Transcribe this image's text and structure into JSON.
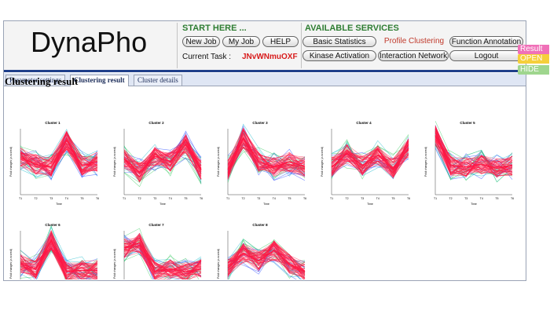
{
  "app": {
    "logo": "DynaPho"
  },
  "start": {
    "title": "START HERE ...",
    "new_job": "New Job",
    "my_job": "My Job",
    "help": "HELP",
    "current_task_label": "Current Task :",
    "current_task_value": "JNvWNmuOXF"
  },
  "services": {
    "title": "AVAILABLE SERVICES",
    "basic_statistics": "Basic Statistics",
    "profile_clustering": "Profile Clustering",
    "function_annotation": "Function Annotation",
    "kinase_activation": "Kinase Activation",
    "interaction_network": "Interaction Network",
    "logout": "Logout"
  },
  "side_tabs": {
    "result": "Result",
    "open": "OPEN",
    "hide": "HIDE"
  },
  "tabs": [
    "Parameter settings",
    "Clustering result",
    "Cluster details"
  ],
  "page": {
    "title": "Clustering result"
  },
  "colors": {
    "nav_border": "#1f3f8a",
    "green_heading": "#2e7d32",
    "task_red": "#d81b1b",
    "profile_main": "#ff1744",
    "profile_secondary": [
      "#1a3dff",
      "#12b7c9",
      "#31c85a"
    ]
  },
  "chart_data": [
    {
      "type": "line",
      "title": "Cluster 1",
      "xlabel": "Time",
      "ylabel": "Fold changes (z-scored)",
      "x": [
        "T1",
        "T2",
        "T3",
        "T4",
        "T5",
        "T6"
      ],
      "series": [
        {
          "values": [
            0.3,
            -0.2,
            -0.4,
            1.6,
            -0.3,
            0.0
          ]
        }
      ]
    },
    {
      "type": "line",
      "title": "Cluster 2",
      "xlabel": "Time",
      "ylabel": "Fold changes (z-scored)",
      "x": [
        "T1",
        "T2",
        "T3",
        "T4",
        "T5",
        "T6"
      ],
      "series": [
        {
          "values": [
            0.2,
            -0.8,
            0.4,
            0.0,
            1.3,
            -0.6
          ]
        }
      ]
    },
    {
      "type": "line",
      "title": "Cluster 3",
      "xlabel": "Time",
      "ylabel": "Fold changes (z-scored)",
      "x": [
        "T1",
        "T2",
        "T3",
        "T4",
        "T5",
        "T6"
      ],
      "series": [
        {
          "values": [
            -0.6,
            1.8,
            0.0,
            -0.4,
            0.0,
            -0.4
          ]
        }
      ]
    },
    {
      "type": "line",
      "title": "Cluster 4",
      "xlabel": "Time",
      "ylabel": "Fold changes (z-scored)",
      "x": [
        "T1",
        "T2",
        "T3",
        "T4",
        "T5",
        "T6"
      ],
      "series": [
        {
          "values": [
            -0.4,
            0.6,
            -0.3,
            0.5,
            -0.5,
            1.0
          ]
        }
      ]
    },
    {
      "type": "line",
      "title": "Cluster 5",
      "xlabel": "Time",
      "ylabel": "Fold changes (z-scored)",
      "x": [
        "T1",
        "T2",
        "T3",
        "T4",
        "T5",
        "T6"
      ],
      "series": [
        {
          "values": [
            2.0,
            -0.3,
            -0.4,
            -0.2,
            -0.5,
            -0.3
          ]
        }
      ]
    },
    {
      "type": "line",
      "title": "Cluster 6",
      "xlabel": "Time",
      "ylabel": "Fold changes (z-scored)",
      "x": [
        "T1",
        "T2",
        "T3",
        "T4",
        "T5",
        "T6"
      ],
      "series": [
        {
          "values": [
            0.0,
            -0.4,
            1.8,
            -0.6,
            -0.5,
            -0.5
          ]
        }
      ]
    },
    {
      "type": "line",
      "title": "Cluster 7",
      "xlabel": "Time",
      "ylabel": "Fold changes (z-scored)",
      "x": [
        "T1",
        "T2",
        "T3",
        "T4",
        "T5",
        "T6"
      ],
      "series": [
        {
          "values": [
            1.2,
            1.6,
            -0.6,
            -0.4,
            -0.6,
            -0.4
          ]
        }
      ]
    },
    {
      "type": "line",
      "title": "Cluster 8",
      "xlabel": "Time",
      "ylabel": "Fold changes (z-scored)",
      "x": [
        "T1",
        "T2",
        "T3",
        "T4",
        "T5",
        "T6"
      ],
      "series": [
        {
          "values": [
            -0.3,
            0.8,
            0.2,
            1.0,
            0.0,
            -0.6
          ]
        }
      ]
    }
  ]
}
